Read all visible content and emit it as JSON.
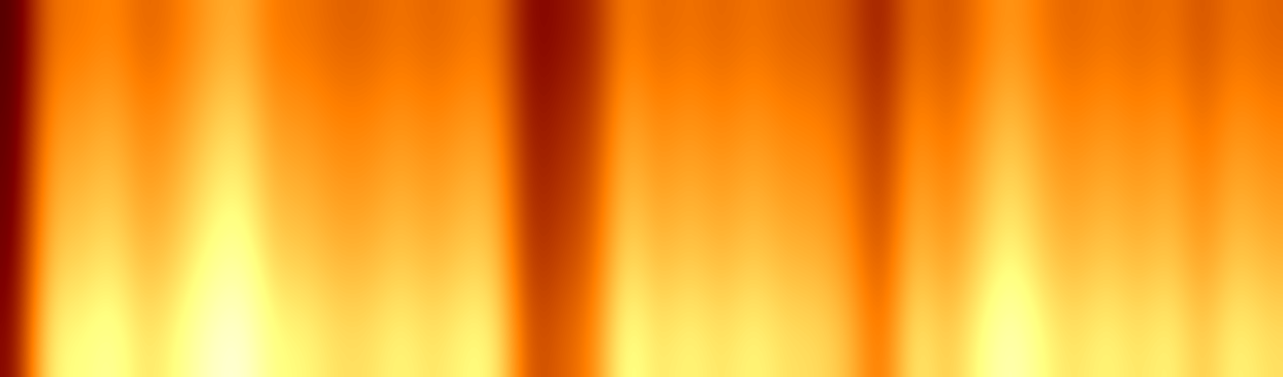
{
  "chart_data": {
    "type": "heatmap",
    "tick_labels": false,
    "color": "afmhot",
    "value_range": [
      0,
      100
    ],
    "cells": [
      [
        16,
        48,
        48,
        52,
        44,
        48,
        56,
        60,
        48,
        48,
        44,
        44,
        48,
        44,
        48,
        48,
        24,
        28,
        32,
        52,
        44,
        48,
        44,
        48,
        44,
        44,
        40,
        28,
        48,
        40,
        48,
        56,
        48,
        44,
        48,
        44,
        48,
        40,
        48,
        44
      ],
      [
        18,
        54,
        54,
        59,
        50,
        54,
        63,
        68,
        54,
        54,
        50,
        50,
        54,
        50,
        54,
        54,
        27,
        32,
        36,
        59,
        50,
        54,
        50,
        54,
        50,
        50,
        45,
        32,
        54,
        45,
        54,
        63,
        54,
        50,
        54,
        50,
        54,
        45,
        54,
        50
      ],
      [
        20,
        60,
        60,
        65,
        55,
        60,
        70,
        75,
        60,
        60,
        55,
        55,
        60,
        55,
        60,
        60,
        30,
        35,
        40,
        65,
        55,
        60,
        55,
        60,
        55,
        55,
        50,
        35,
        60,
        50,
        60,
        70,
        60,
        55,
        60,
        55,
        60,
        50,
        60,
        55
      ],
      [
        22,
        66,
        66,
        72,
        61,
        66,
        77,
        83,
        66,
        66,
        61,
        61,
        66,
        61,
        66,
        66,
        33,
        39,
        44,
        72,
        61,
        66,
        61,
        66,
        61,
        61,
        55,
        39,
        66,
        55,
        66,
        77,
        66,
        61,
        66,
        61,
        66,
        55,
        66,
        61
      ],
      [
        25,
        75,
        75,
        81,
        69,
        75,
        88,
        94,
        75,
        75,
        69,
        69,
        75,
        69,
        75,
        75,
        38,
        44,
        50,
        81,
        69,
        75,
        69,
        75,
        69,
        69,
        63,
        44,
        75,
        63,
        75,
        88,
        75,
        69,
        75,
        69,
        75,
        63,
        75,
        69
      ]
    ]
  }
}
